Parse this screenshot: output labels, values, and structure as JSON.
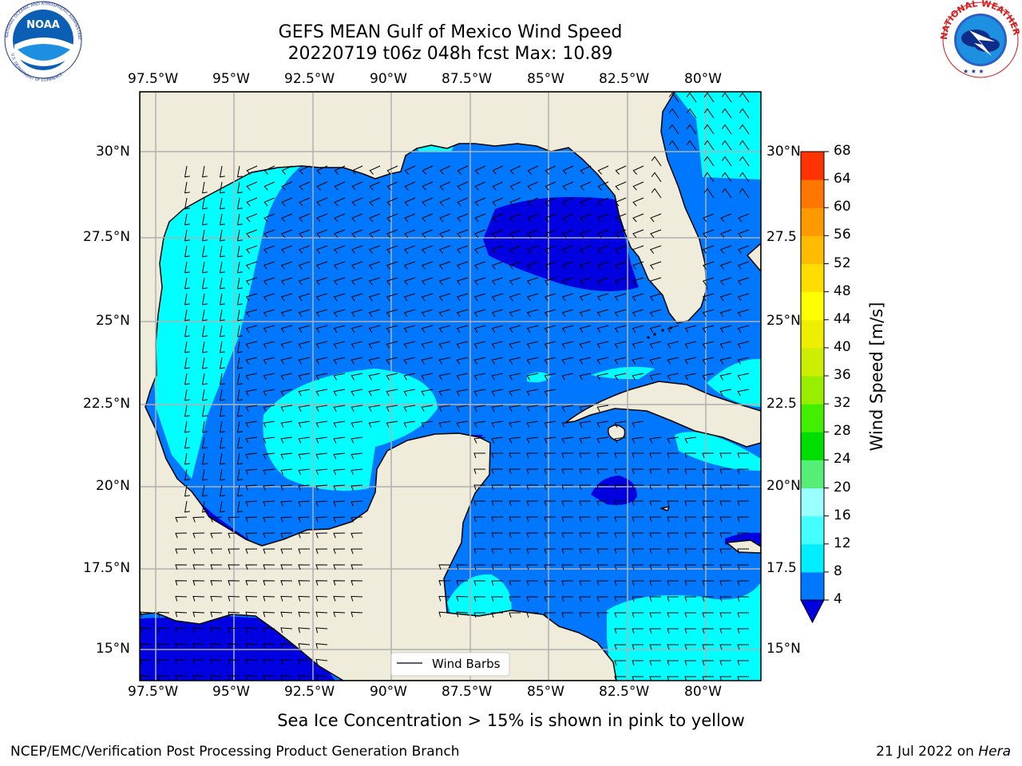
{
  "header": {
    "title_line1": "GEFS MEAN Gulf of Mexico Wind Speed",
    "title_line2": "20220719 t06z 048h fcst   Max: 10.89",
    "left_logo": {
      "outer_text": "NATIONAL OCEANIC AND ATMOSPHERIC ADMINISTRATION",
      "bottom_text": "U.S. DEPARTMENT OF COMMERCE",
      "center_text": "NOAA"
    },
    "right_logo": {
      "outer_text": "NATIONAL WEATHER SERVICE"
    }
  },
  "map": {
    "lon_labels": [
      "97.5°W",
      "95°W",
      "92.5°W",
      "90°W",
      "87.5°W",
      "85°W",
      "82.5°W",
      "80°W"
    ],
    "lat_labels": [
      "30°N",
      "27.5°N",
      "25°N",
      "22.5°N",
      "20°N",
      "17.5°N",
      "15°N"
    ],
    "right_lat_labels": [
      "30°N",
      "27.5",
      "25°N",
      "22.5",
      "20°N",
      "17.5",
      "15°N"
    ],
    "legend_label": "Wind Barbs",
    "colors": {
      "land": "#efecdb",
      "coast": "#000000",
      "grid": "#b0b0b0"
    }
  },
  "colorbar": {
    "label": "Wind Speed [m/s]",
    "ticks": [
      "4",
      "8",
      "12",
      "16",
      "20",
      "24",
      "28",
      "32",
      "36",
      "40",
      "44",
      "48",
      "52",
      "56",
      "60",
      "64",
      "68"
    ],
    "colors": [
      "#0077ff",
      "#00eeff",
      "#44ffff",
      "#99ffff",
      "#55ee77",
      "#00dd00",
      "#44ee00",
      "#99ee00",
      "#ccee00",
      "#eeee00",
      "#ffff00",
      "#ffdd00",
      "#ffbb00",
      "#ff9900",
      "#ff7700",
      "#ff3300"
    ],
    "under_color": "#0000e0"
  },
  "footer": {
    "note": "Sea Ice Concentration > 15% is shown in pink to yellow",
    "credit": "NCEP/EMC/Verification Post Processing Product Generation Branch",
    "date_prefix": "21 Jul 2022 on ",
    "machine": "Hera"
  }
}
